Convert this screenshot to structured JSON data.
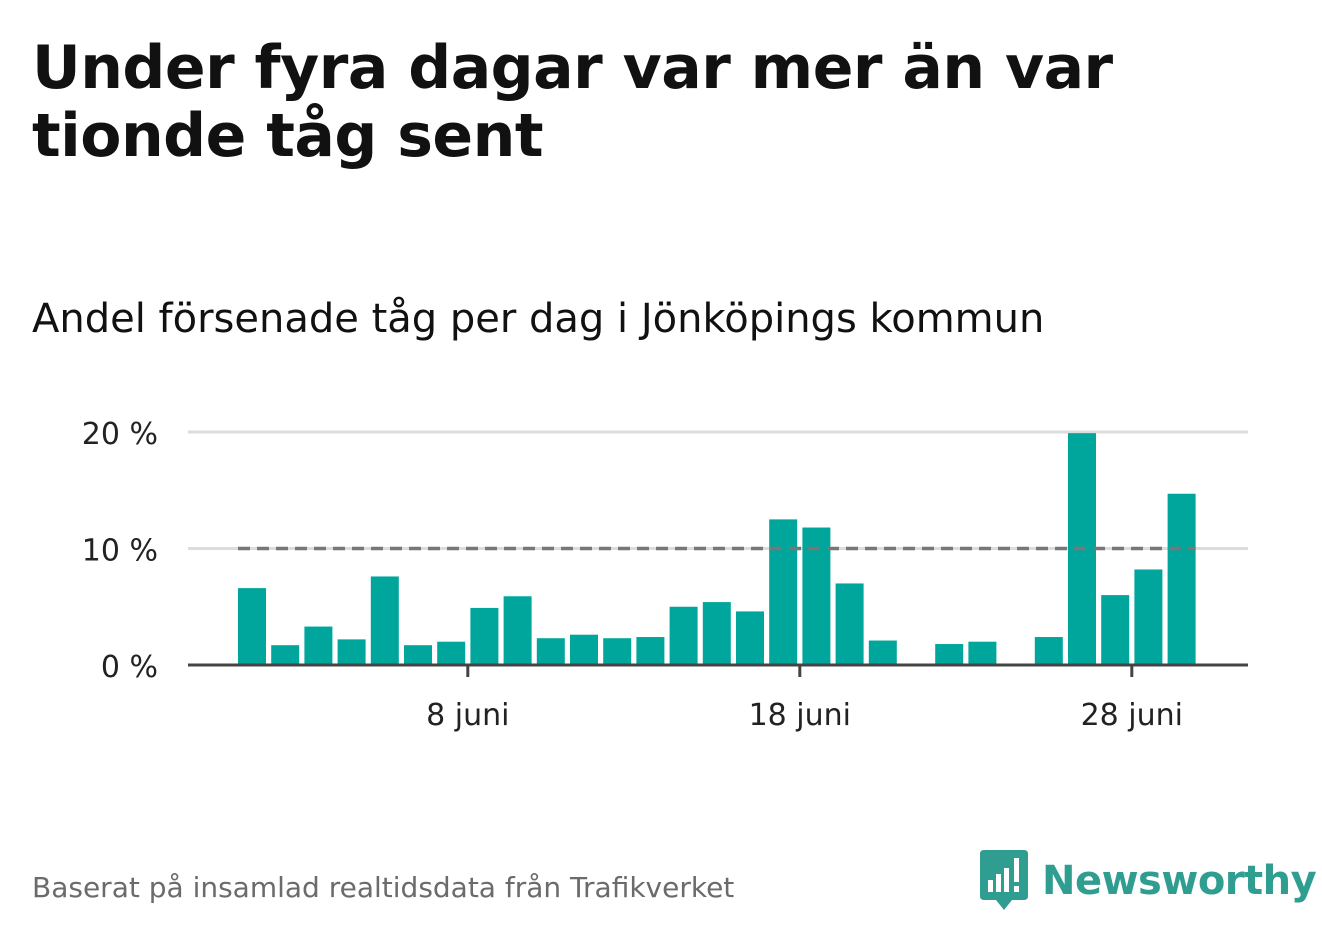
{
  "title": "Under fyra dagar var mer än var tionde tåg sent",
  "subtitle": "Andel försenade tåg per dag i Jönköpings kommun",
  "footer": "Baserat på insamlad realtidsdata från Trafikverket",
  "brand": {
    "name": "Newsworthy",
    "icon": "bar-chart-exclamation-icon",
    "color": "#2f9e91"
  },
  "colors": {
    "bar": "#00a69c",
    "grid": "#dcdcdc",
    "axis": "#444444",
    "threshold": "#777777"
  },
  "chart_data": {
    "type": "bar",
    "x_unit": "dag (juni)",
    "days": [
      1,
      2,
      3,
      4,
      5,
      6,
      7,
      8,
      9,
      10,
      11,
      12,
      13,
      14,
      15,
      16,
      17,
      18,
      19,
      20,
      21,
      22,
      23,
      24,
      25,
      26,
      27,
      28,
      29,
      30
    ],
    "values": [
      6.6,
      1.7,
      3.3,
      2.2,
      7.6,
      1.7,
      2.0,
      4.9,
      5.9,
      2.3,
      2.6,
      2.3,
      2.4,
      5.0,
      5.4,
      4.6,
      12.5,
      11.8,
      7.0,
      2.1,
      null,
      1.8,
      2.0,
      null,
      2.4,
      19.9,
      6.0,
      8.2,
      14.7,
      null
    ],
    "ylim": [
      0,
      20
    ],
    "yticks": [
      {
        "value": 0,
        "label": "0 %"
      },
      {
        "value": 10,
        "label": "10 %"
      },
      {
        "value": 20,
        "label": "20 %"
      }
    ],
    "xticks": [
      {
        "day": 8,
        "label": "8 juni"
      },
      {
        "day": 18,
        "label": "18 juni"
      },
      {
        "day": 28,
        "label": "28 juni"
      }
    ],
    "reference_line": {
      "value": 10,
      "style": "dashed"
    },
    "grid": true,
    "legend": "none"
  }
}
